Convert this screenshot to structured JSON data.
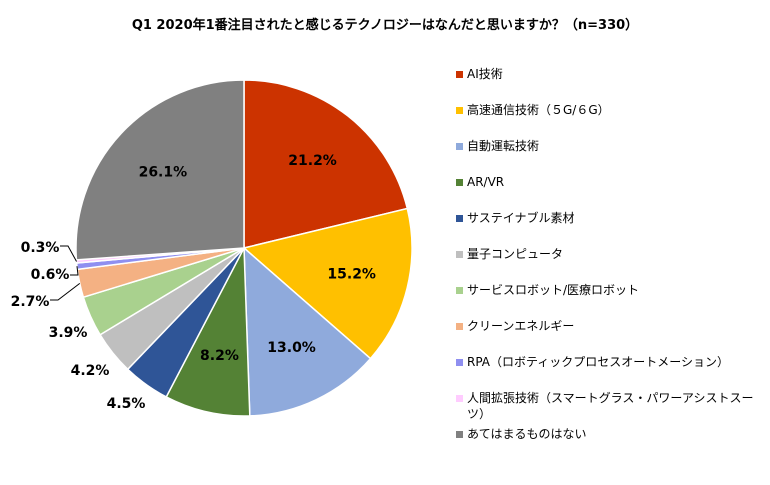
{
  "chart_data": {
    "type": "pie",
    "title": "Q1 2020年1番注目されたと感じるテクノロジーはなんだと思いますか？（n=330）",
    "categories": [
      "AI技術",
      "高速通信技術（５G/６G）",
      "自動運転技術",
      "AR/VR",
      "サステイナブル素材",
      "量子コンピュータ",
      "サービスロボット/医療ロボット",
      "クリーンエネルギー",
      "RPA（ロボティックプロセスオートメーション）",
      "人間拡張技術（スマートグラス・パワーアシストスーツ）",
      "あてはまるものはない"
    ],
    "values": [
      21.2,
      15.2,
      13.0,
      8.2,
      4.5,
      4.2,
      3.9,
      2.7,
      0.6,
      0.3,
      26.1
    ],
    "labels": [
      "21.2%",
      "15.2%",
      "13.0%",
      "8.2%",
      "4.5%",
      "4.2%",
      "3.9%",
      "2.7%",
      "0.6%",
      "0.3%",
      "26.1%"
    ],
    "colors": [
      "#cc3300",
      "#ffc000",
      "#8faadc",
      "#548235",
      "#2f5597",
      "#bfbfbf",
      "#a9d18e",
      "#f4b183",
      "#8f8ff0",
      "#ffccff",
      "#808080"
    ],
    "legend_placement": "right",
    "start_angle": "12 o'clock",
    "direction": "clockwise"
  }
}
